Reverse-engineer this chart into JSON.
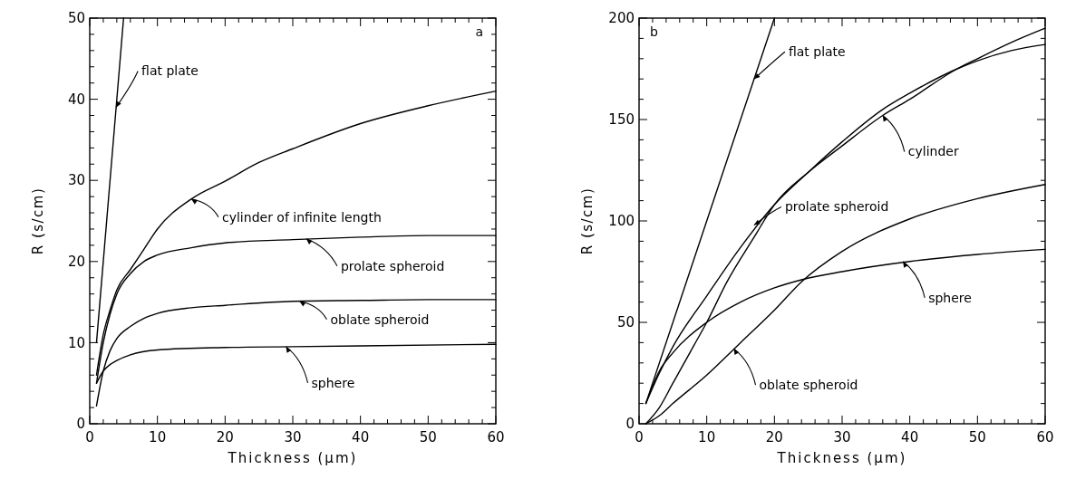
{
  "chart_data": [
    {
      "type": "line",
      "xlabel": "Thickness (μm)",
      "ylabel": "R (s/cm)",
      "xlim": [
        0,
        60
      ],
      "ylim": [
        0,
        50
      ],
      "xticks": [
        0,
        {
          "value": 2,
          "label": null
        },
        {
          "value": 4,
          "label": null
        },
        {
          "value": 6,
          "label": null
        },
        {
          "value": 8,
          "label": null
        },
        10,
        {
          "value": 12,
          "label": null
        },
        {
          "value": 14,
          "label": null
        },
        {
          "value": 16,
          "label": null
        },
        {
          "value": 18,
          "label": null
        },
        20,
        {
          "value": 22,
          "label": null
        },
        {
          "value": 24,
          "label": null
        },
        {
          "value": 26,
          "label": null
        },
        {
          "value": 28,
          "label": null
        },
        30,
        {
          "value": 32,
          "label": null
        },
        {
          "value": 34,
          "label": null
        },
        {
          "value": 36,
          "label": null
        },
        {
          "value": 38,
          "label": null
        },
        40,
        {
          "value": 42,
          "label": null
        },
        {
          "value": 44,
          "label": null
        },
        {
          "value": 46,
          "label": null
        },
        {
          "value": 48,
          "label": null
        },
        50,
        {
          "value": 52,
          "label": null
        },
        {
          "value": 54,
          "label": null
        },
        {
          "value": 56,
          "label": null
        },
        {
          "value": 58,
          "label": null
        },
        60
      ],
      "yticks": [
        0,
        {
          "value": 2,
          "label": null
        },
        {
          "value": 4,
          "label": null
        },
        {
          "value": 6,
          "label": null
        },
        {
          "value": 8,
          "label": null
        },
        10,
        {
          "value": 12,
          "label": null
        },
        {
          "value": 14,
          "label": null
        },
        {
          "value": 16,
          "label": null
        },
        {
          "value": 18,
          "label": null
        },
        20,
        {
          "value": 22,
          "label": null
        },
        {
          "value": 24,
          "label": null
        },
        {
          "value": 26,
          "label": null
        },
        {
          "value": 28,
          "label": null
        },
        30,
        {
          "value": 32,
          "label": null
        },
        {
          "value": 34,
          "label": null
        },
        {
          "value": 36,
          "label": null
        },
        {
          "value": 38,
          "label": null
        },
        40,
        {
          "value": 42,
          "label": null
        },
        {
          "value": 44,
          "label": null
        },
        {
          "value": 46,
          "label": null
        },
        {
          "value": 48,
          "label": null
        },
        50
      ],
      "series": [
        {
          "color": "#000000",
          "x": [
            1,
            5
          ],
          "values": [
            10,
            50
          ]
        },
        {
          "color": "#000000",
          "x": [
            1,
            2,
            3,
            4,
            6,
            8,
            10,
            15,
            20,
            25,
            30,
            40,
            50,
            60
          ],
          "values": [
            6,
            11,
            14,
            16.5,
            19,
            21.5,
            24,
            27.7,
            29.9,
            32.2,
            33.9,
            37,
            39.2,
            41
          ]
        },
        {
          "color": "#000000",
          "x": [
            1,
            2,
            3,
            4,
            6,
            8,
            10,
            15,
            20,
            30,
            40,
            50,
            60
          ],
          "values": [
            5,
            10,
            13.5,
            16,
            18.5,
            20,
            20.8,
            21.7,
            22.3,
            22.7,
            23,
            23.2,
            23.2
          ]
        },
        {
          "color": "#000000",
          "x": [
            1,
            2,
            3,
            4,
            6,
            8,
            10,
            15,
            20,
            30,
            40,
            50,
            60
          ],
          "values": [
            2.2,
            6.5,
            9,
            10.5,
            12,
            13,
            13.6,
            14.3,
            14.6,
            15.1,
            15.2,
            15.3,
            15.3
          ]
        },
        {
          "color": "#000000",
          "x": [
            1,
            2,
            3,
            4,
            6,
            10,
            20,
            30,
            40,
            60
          ],
          "values": [
            5,
            6.5,
            7.3,
            7.8,
            8.5,
            9.1,
            9.4,
            9.5,
            9.6,
            9.8
          ]
        }
      ],
      "annotations": [
        {
          "text": "flat plate",
          "x": 3.9,
          "y": 39
        },
        {
          "text": "cylinder of infinite length",
          "x": 15,
          "y": 27.7
        },
        {
          "text": "prolate spheroid",
          "x": 32,
          "y": 22.8
        },
        {
          "text": "oblate spheroid",
          "x": 31,
          "y": 15.1
        },
        {
          "text": "sphere",
          "x": 29,
          "y": 9.5
        },
        "a"
      ]
    },
    {
      "type": "line",
      "xlabel": "Thickness (μm)",
      "ylabel": "R (s/cm)",
      "xlim": [
        0,
        60
      ],
      "ylim": [
        0,
        200
      ],
      "xticks": [
        0,
        {
          "value": 2,
          "label": null
        },
        {
          "value": 4,
          "label": null
        },
        {
          "value": 6,
          "label": null
        },
        {
          "value": 8,
          "label": null
        },
        10,
        {
          "value": 12,
          "label": null
        },
        {
          "value": 14,
          "label": null
        },
        {
          "value": 16,
          "label": null
        },
        {
          "value": 18,
          "label": null
        },
        20,
        {
          "value": 22,
          "label": null
        },
        {
          "value": 24,
          "label": null
        },
        {
          "value": 26,
          "label": null
        },
        {
          "value": 28,
          "label": null
        },
        30,
        {
          "value": 32,
          "label": null
        },
        {
          "value": 34,
          "label": null
        },
        {
          "value": 36,
          "label": null
        },
        {
          "value": 38,
          "label": null
        },
        40,
        {
          "value": 42,
          "label": null
        },
        {
          "value": 44,
          "label": null
        },
        {
          "value": 46,
          "label": null
        },
        {
          "value": 48,
          "label": null
        },
        50,
        {
          "value": 52,
          "label": null
        },
        {
          "value": 54,
          "label": null
        },
        {
          "value": 56,
          "label": null
        },
        {
          "value": 58,
          "label": null
        },
        60
      ],
      "yticks": [
        0,
        {
          "value": 10,
          "label": null
        },
        {
          "value": 20,
          "label": null
        },
        {
          "value": 30,
          "label": null
        },
        {
          "value": 40,
          "label": null
        },
        50,
        {
          "value": 60,
          "label": null
        },
        {
          "value": 70,
          "label": null
        },
        {
          "value": 80,
          "label": null
        },
        {
          "value": 90,
          "label": null
        },
        100,
        {
          "value": 110,
          "label": null
        },
        {
          "value": 120,
          "label": null
        },
        {
          "value": 130,
          "label": null
        },
        {
          "value": 140,
          "label": null
        },
        150,
        {
          "value": 160,
          "label": null
        },
        {
          "value": 170,
          "label": null
        },
        {
          "value": 180,
          "label": null
        },
        {
          "value": 190,
          "label": null
        },
        200
      ],
      "series": [
        {
          "color": "#000000",
          "x": [
            1,
            20
          ],
          "values": [
            10,
            200
          ]
        },
        {
          "color": "#000000",
          "x": [
            1,
            3,
            5,
            8,
            10,
            13,
            17,
            20,
            25,
            30,
            36,
            40,
            47,
            50,
            55,
            60
          ],
          "values": [
            0,
            8,
            20,
            38,
            50,
            70,
            92,
            108,
            124,
            137,
            152,
            160,
            175,
            180,
            188,
            195
          ]
        },
        {
          "color": "#000000",
          "x": [
            1,
            3,
            5,
            10,
            15,
            20,
            25,
            30,
            36,
            40,
            47,
            50,
            55,
            60
          ],
          "values": [
            10,
            25,
            38,
            63,
            87,
            108,
            124,
            139,
            155,
            163,
            175,
            179,
            184,
            187
          ]
        },
        {
          "color": "#000000",
          "x": [
            1,
            3,
            5,
            10,
            15,
            20,
            24,
            30,
            40,
            50,
            60
          ],
          "values": [
            10,
            26,
            35,
            50,
            60,
            67,
            71,
            75,
            80,
            83.5,
            86
          ]
        },
        {
          "color": "#000000",
          "x": [
            1,
            3,
            5,
            10,
            15,
            20,
            24,
            30,
            40,
            50,
            60
          ],
          "values": [
            0,
            4,
            10,
            24,
            40,
            56,
            70,
            85,
            101,
            111,
            118
          ]
        }
      ],
      "annotations": [
        {
          "text": "flat plate",
          "x": 17,
          "y": 170
        },
        {
          "text": "cylinder",
          "x": 36,
          "y": 152
        },
        {
          "text": "prolate spheroid",
          "x": 17,
          "y": 98
        },
        {
          "text": "sphere",
          "x": 39,
          "y": 80
        },
        {
          "text": "oblate spheroid",
          "x": 14,
          "y": 37
        },
        "b"
      ]
    }
  ]
}
